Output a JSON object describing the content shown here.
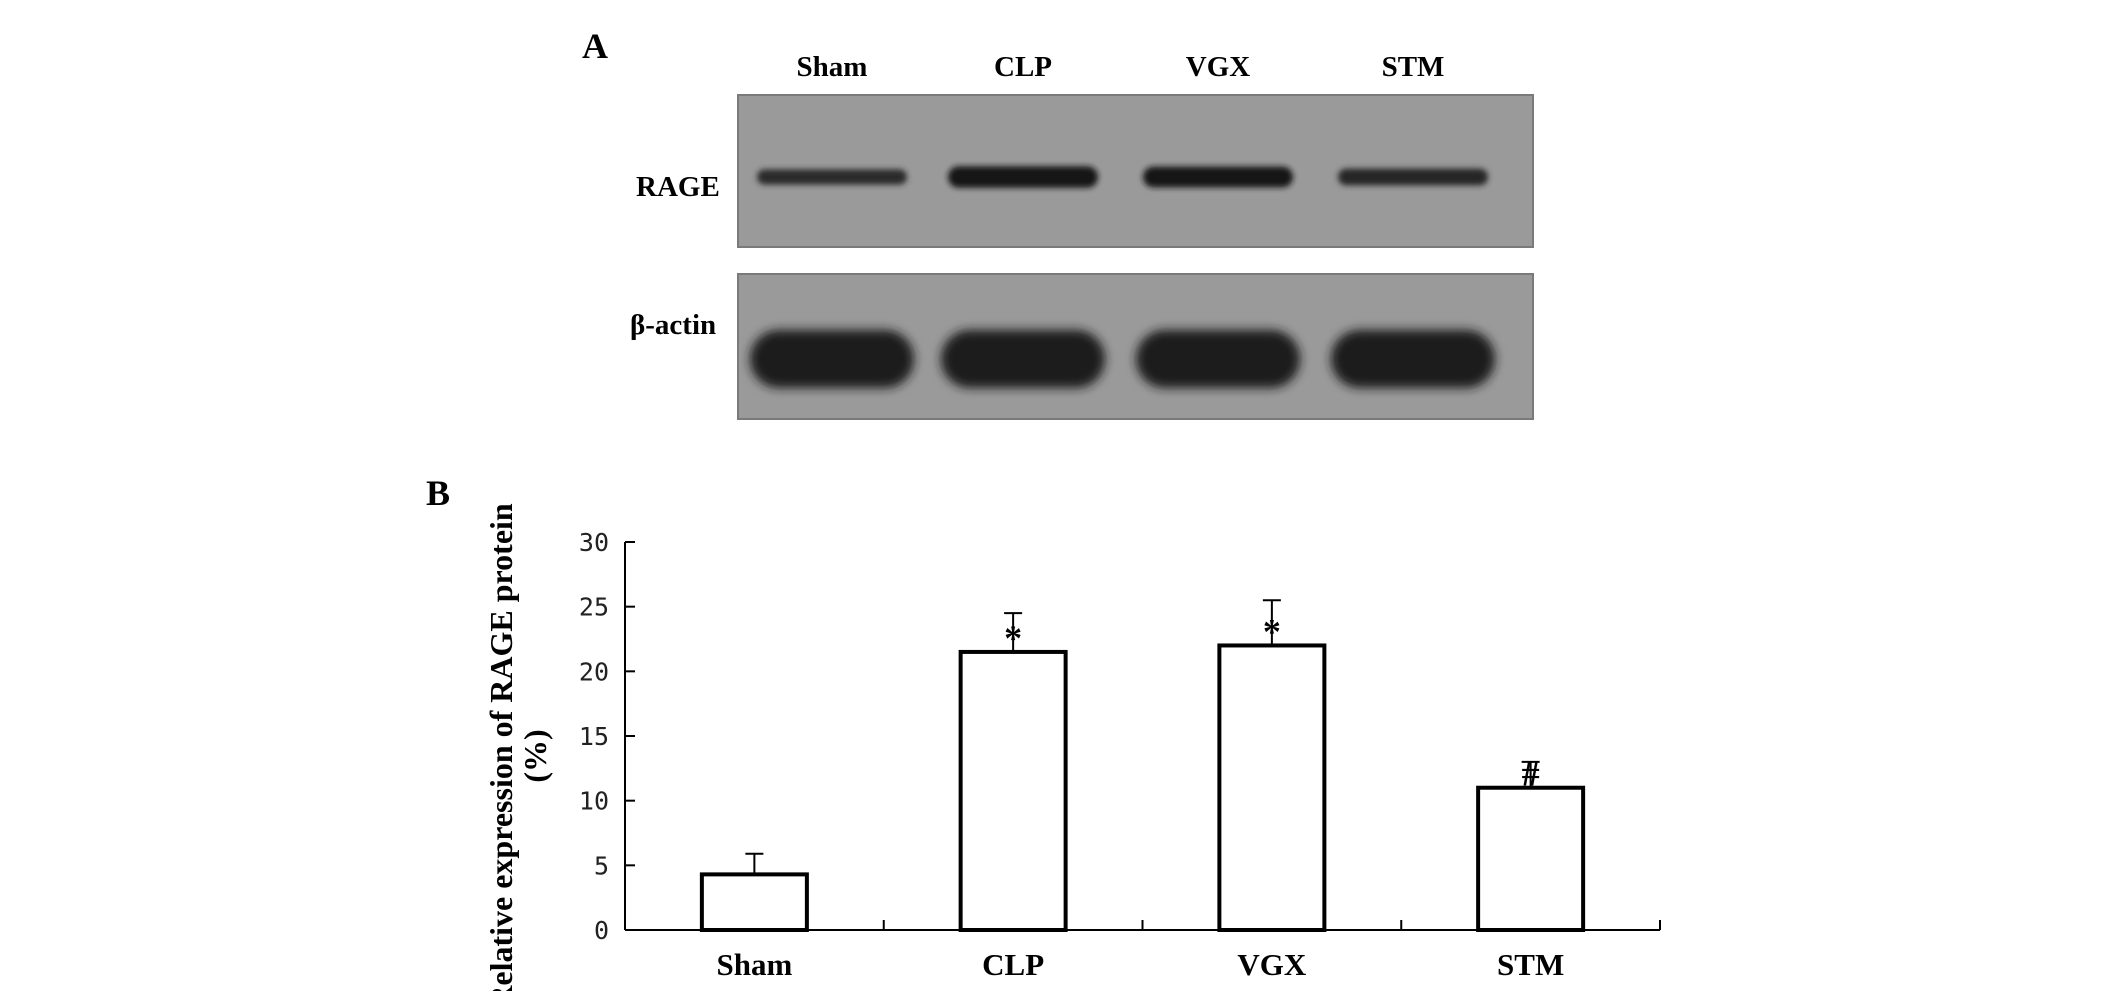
{
  "panel_a": {
    "letter": "A",
    "lanes": [
      "Sham",
      "CLP",
      "VGX",
      "STM"
    ],
    "blots": [
      {
        "label": "RAGE",
        "band_intensity": [
          0.45,
          0.85,
          0.8,
          0.55
        ]
      },
      {
        "label": "β-actin",
        "band_intensity": [
          1.0,
          1.0,
          1.0,
          1.0
        ]
      }
    ]
  },
  "panel_b": {
    "letter": "B"
  },
  "chart_data": {
    "type": "bar",
    "categories": [
      "Sham",
      "CLP",
      "VGX",
      "STM"
    ],
    "values": [
      4.3,
      21.5,
      22.0,
      11.0
    ],
    "errors": [
      1.6,
      3.0,
      3.5,
      2.0
    ],
    "annotations": [
      "",
      "*",
      "*",
      "#"
    ],
    "title": "",
    "xlabel": "",
    "ylabel": "Relative expression of RAGE protein (%)",
    "ylim": [
      0,
      30
    ],
    "yticks": [
      0,
      5,
      10,
      15,
      20,
      25,
      30
    ],
    "grid": false,
    "legend": "none",
    "bar_fill": "#ffffff",
    "bar_stroke": "#000000"
  }
}
